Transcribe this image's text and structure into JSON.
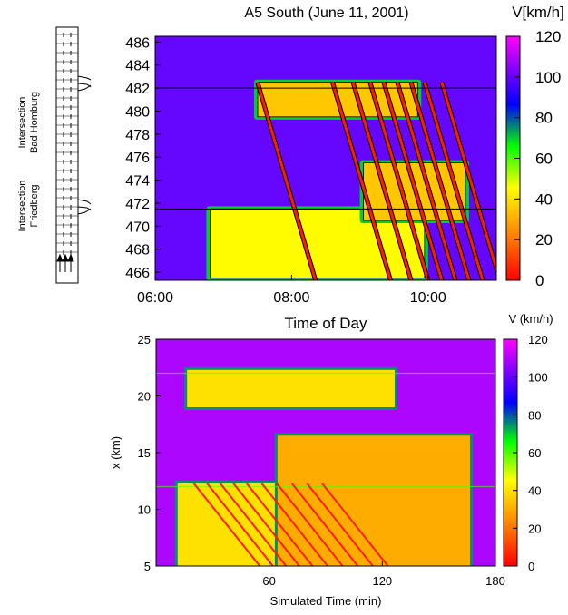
{
  "colors": {
    "scale": [
      "#ff0000",
      "#ff8c00",
      "#ffff00",
      "#00ff00",
      "#0000ff",
      "#ff00ff"
    ],
    "background": "#ffffff"
  },
  "road_sketch": {
    "labels": [
      "Intersection Bad Homburg",
      "Intersection Friedberg"
    ]
  },
  "chart_data": [
    {
      "type": "heatmap",
      "title": "A5 South (June 11, 2001)",
      "xlabel": "Time of Day",
      "ylabel": "",
      "x_ticks": [
        "06:00",
        "08:00",
        "10:00"
      ],
      "x_tick_hours": [
        6,
        8,
        10
      ],
      "xlim_hours": [
        6,
        11
      ],
      "y_ticks": [
        466,
        468,
        470,
        472,
        474,
        476,
        478,
        480,
        482,
        484,
        486
      ],
      "ylim": [
        465.3,
        486.5
      ],
      "colorbar": {
        "label": "V[km/h]",
        "ticks": [
          0,
          20,
          40,
          60,
          80,
          100,
          120
        ],
        "range": [
          0,
          120
        ]
      },
      "reference_lines_y": [
        482,
        471.5
      ],
      "free_flow_speed_kmh": 100,
      "congested_regions": [
        {
          "t_start_h": 7.45,
          "t_end_h": 9.9,
          "x_low": 479.5,
          "x_high": 482.5,
          "speed_kmh": 35
        },
        {
          "t_start_h": 6.75,
          "t_end_h": 10.0,
          "x_low": 465.5,
          "x_high": 471.5,
          "speed_kmh": 45
        },
        {
          "t_start_h": 9.0,
          "t_end_h": 10.6,
          "x_low": 470.5,
          "x_high": 475.5,
          "speed_kmh": 35
        }
      ],
      "stop_and_go_waves": {
        "count": 9,
        "start_times_h": [
          7.5,
          8.6,
          8.9,
          9.15,
          9.35,
          9.55,
          9.75,
          9.95,
          10.2
        ],
        "speed_kmh": 5
      }
    },
    {
      "type": "heatmap",
      "title": "",
      "xlabel": "Simulated Time (min)",
      "ylabel": "x (km)",
      "x_ticks": [
        60,
        120,
        180
      ],
      "xlim": [
        0,
        180
      ],
      "y_ticks": [
        5,
        10,
        15,
        20,
        25
      ],
      "ylim": [
        5,
        25
      ],
      "colorbar": {
        "label": "V (km/h)",
        "ticks": [
          0,
          20,
          40,
          60,
          80,
          100,
          120
        ],
        "range": [
          0,
          120
        ]
      },
      "free_flow_speed_kmh": 110,
      "bottlenecks_km": [
        22,
        12
      ],
      "congested_regions": [
        {
          "t_start_min": 15,
          "t_end_min": 128,
          "x_low": 19,
          "x_high": 22.3,
          "speed_kmh": 40
        },
        {
          "t_start_min": 10,
          "t_end_min": 88,
          "x_low": 5,
          "x_high": 12.3,
          "speed_kmh": 40
        },
        {
          "t_start_min": 63,
          "t_end_min": 168,
          "x_low": 5,
          "x_high": 16.5,
          "speed_kmh": 30
        }
      ],
      "stop_and_go_waves": {
        "count": 10,
        "start_times_min": [
          20,
          27,
          34,
          41,
          48,
          56,
          64,
          72,
          80,
          88
        ],
        "speed_kmh": 5
      }
    }
  ]
}
